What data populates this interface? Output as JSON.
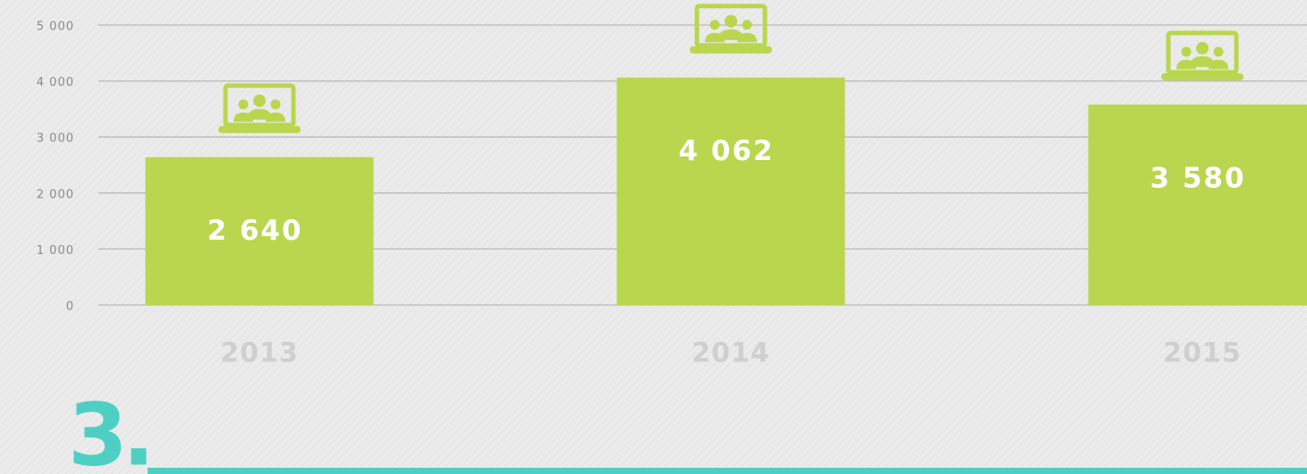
{
  "chart_data": {
    "type": "bar",
    "categories": [
      "2013",
      "2014",
      "2015"
    ],
    "values": [
      2640,
      4062,
      3580
    ],
    "value_labels": [
      "2 640",
      "4 062",
      "3 580"
    ],
    "color": "#b9d64e",
    "ylim": [
      0,
      5000
    ],
    "yticks": [
      0,
      {
        "value": 1000,
        "label": "1 000"
      },
      {
        "value": 2000,
        "label": "2 000"
      },
      {
        "value": 3000,
        "label": "3 000"
      },
      {
        "value": 4000,
        "label": "4 000"
      },
      {
        "value": 5000,
        "label": "5 000"
      }
    ],
    "grid": true
  },
  "section": {
    "number": "3."
  }
}
